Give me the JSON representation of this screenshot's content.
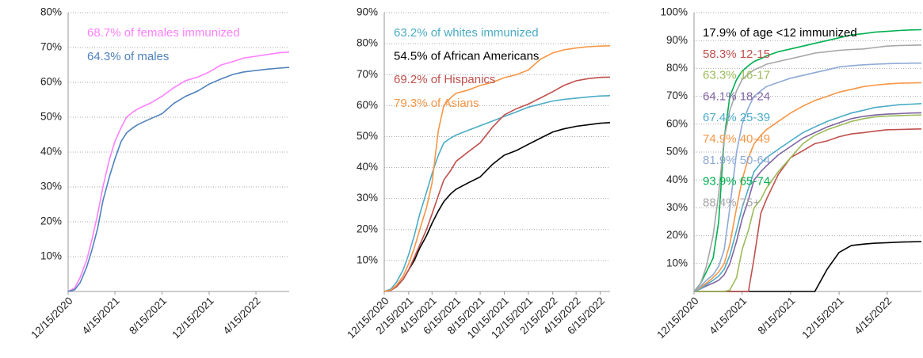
{
  "chart_data": [
    {
      "type": "line",
      "x": [
        "12/15/2020",
        "1/1/2021",
        "1/15/2021",
        "2/1/2021",
        "2/15/2021",
        "3/1/2021",
        "3/15/2021",
        "4/1/2021",
        "4/15/2021",
        "5/1/2021",
        "5/15/2021",
        "6/1/2021",
        "6/15/2021",
        "7/15/2021",
        "8/15/2021",
        "9/15/2021",
        "10/15/2021",
        "11/15/2021",
        "12/15/2021",
        "1/15/2022",
        "2/15/2022",
        "3/15/2022",
        "4/15/2022",
        "5/15/2022",
        "6/15/2022",
        "7/10/2022"
      ],
      "series": [
        {
          "name": "68.7% of females immunized",
          "color": "#ff80ff",
          "values": [
            0,
            1,
            4,
            9,
            15,
            22,
            30,
            38,
            43,
            47,
            50,
            51.5,
            52.5,
            54,
            56,
            58.5,
            60.5,
            61.5,
            63,
            65,
            66,
            67,
            67.5,
            68,
            68.5,
            68.7
          ]
        },
        {
          "name": "64.3% of males",
          "color": "#4f81bd",
          "values": [
            0,
            0.5,
            2.5,
            7,
            12,
            18,
            26,
            33,
            38,
            43,
            45.5,
            47,
            48,
            49.5,
            51,
            54,
            56,
            57.5,
            59.5,
            61,
            62.3,
            63,
            63.4,
            63.8,
            64.1,
            64.3
          ]
        }
      ],
      "xlim": [
        "12/15/2020",
        "7/10/2022"
      ],
      "xticks": [
        "12/15/2020",
        "4/15/2021",
        "8/15/2021",
        "12/15/2021",
        "4/15/2022"
      ],
      "ylim": [
        0,
        80
      ],
      "yticks": [
        {
          "value": 10,
          "label": "10%"
        },
        {
          "value": 20,
          "label": "20%"
        },
        {
          "value": 30,
          "label": "30%"
        },
        {
          "value": 40,
          "label": "40%"
        },
        {
          "value": 50,
          "label": "50%"
        },
        {
          "value": 60,
          "label": "60%"
        },
        {
          "value": 70,
          "label": "70%"
        },
        {
          "value": 80,
          "label": "80%"
        }
      ],
      "grid": true
    },
    {
      "type": "line",
      "x": [
        "12/15/2020",
        "1/1/2021",
        "1/15/2021",
        "2/1/2021",
        "2/15/2021",
        "3/1/2021",
        "3/15/2021",
        "4/1/2021",
        "4/15/2021",
        "5/1/2021",
        "5/15/2021",
        "6/1/2021",
        "6/15/2021",
        "7/15/2021",
        "8/15/2021",
        "9/15/2021",
        "10/15/2021",
        "11/15/2021",
        "12/15/2021",
        "1/15/2022",
        "2/15/2022",
        "3/15/2022",
        "4/15/2022",
        "5/15/2022",
        "6/15/2022",
        "7/10/2022"
      ],
      "series": [
        {
          "name": "63.2% of whites immunized",
          "color": "#4bacc6",
          "values": [
            0,
            0.8,
            3,
            7,
            12,
            18,
            25,
            32,
            38,
            44,
            48,
            49.5,
            50.5,
            52,
            53.5,
            55,
            56.5,
            58,
            59.5,
            60.5,
            61.5,
            62,
            62.4,
            62.8,
            63.1,
            63.2
          ]
        },
        {
          "name": "54.5% of African Americans",
          "color": "#000000",
          "values": [
            0,
            0.4,
            1.5,
            4,
            7,
            10,
            14,
            18,
            22,
            26,
            29,
            31.5,
            33,
            35,
            37,
            41,
            44,
            45.5,
            47.5,
            49.5,
            51.5,
            52.5,
            53.3,
            53.8,
            54.3,
            54.5
          ]
        },
        {
          "name": "69.2% of Hispanics",
          "color": "#c0504d",
          "values": [
            0,
            0.4,
            1.5,
            4,
            7,
            11,
            15,
            20,
            25,
            31,
            36,
            39,
            42,
            45,
            48,
            53,
            57,
            59,
            60.5,
            62.5,
            64.5,
            66.5,
            68,
            68.7,
            69.1,
            69.2
          ]
        },
        {
          "name": "79.3% of Asians",
          "color": "#f79646",
          "values": [
            0,
            0.5,
            2,
            5,
            9,
            14,
            20,
            27,
            35,
            52,
            60,
            62.5,
            64,
            65,
            66.5,
            67.5,
            69,
            70,
            71.5,
            75,
            77,
            78,
            78.6,
            79,
            79.2,
            79.3
          ]
        }
      ],
      "xlim": [
        "12/15/2020",
        "7/10/2022"
      ],
      "xticks": [
        "12/15/2020",
        "2/15/2021",
        "4/15/2021",
        "6/15/2021",
        "8/15/2021",
        "10/15/2021",
        "12/15/2021",
        "2/15/2022",
        "4/15/2022",
        "6/15/2022"
      ],
      "ylim": [
        0,
        90
      ],
      "yticks": [
        {
          "value": 10,
          "label": "10%"
        },
        {
          "value": 20,
          "label": "20%"
        },
        {
          "value": 30,
          "label": "30%"
        },
        {
          "value": 40,
          "label": "40%"
        },
        {
          "value": 50,
          "label": "50%"
        },
        {
          "value": 60,
          "label": "60%"
        },
        {
          "value": 70,
          "label": "70%"
        },
        {
          "value": 80,
          "label": "80%"
        },
        {
          "value": 90,
          "label": "90%"
        }
      ],
      "grid": true
    },
    {
      "type": "line",
      "x": [
        "12/15/2020",
        "1/1/2021",
        "1/15/2021",
        "2/1/2021",
        "2/15/2021",
        "3/1/2021",
        "3/15/2021",
        "4/1/2021",
        "4/15/2021",
        "5/1/2021",
        "5/15/2021",
        "6/1/2021",
        "6/15/2021",
        "7/15/2021",
        "8/15/2021",
        "9/15/2021",
        "10/15/2021",
        "11/15/2021",
        "12/15/2021",
        "1/15/2022",
        "2/15/2022",
        "3/15/2022",
        "4/15/2022",
        "5/15/2022",
        "6/15/2022",
        "7/10/2022"
      ],
      "series": [
        {
          "name": "17.9% of age <12 immunized",
          "color": "#000000",
          "values": [
            0,
            0,
            0,
            0,
            0,
            0,
            0,
            0,
            0,
            0,
            0,
            0,
            0,
            0,
            0,
            0,
            0,
            8,
            14,
            16.5,
            17,
            17.3,
            17.5,
            17.7,
            17.8,
            17.9
          ]
        },
        {
          "name": "58.3% 12-15",
          "color": "#c0504d",
          "values": [
            0,
            0,
            0,
            0,
            0,
            0,
            0,
            0,
            0,
            0,
            12,
            28,
            33,
            42,
            48,
            50.5,
            53,
            54,
            55.5,
            56.5,
            57,
            57.5,
            58,
            58.1,
            58.2,
            58.3
          ]
        },
        {
          "name": "63.3% 16-17",
          "color": "#9bbb59",
          "values": [
            0,
            0,
            0,
            0,
            0,
            0,
            0.5,
            5,
            15,
            22,
            30,
            33,
            37,
            43,
            48,
            53,
            56,
            58,
            59.5,
            61,
            62,
            62.6,
            62.9,
            63.1,
            63.2,
            63.3
          ]
        },
        {
          "name": "64.1% 18-24",
          "color": "#8064a2",
          "values": [
            0,
            1,
            2,
            3,
            4,
            6,
            10,
            18,
            26,
            33,
            40,
            43,
            45,
            49,
            52,
            55,
            57,
            59,
            60.5,
            62,
            62.8,
            63.3,
            63.6,
            63.8,
            64,
            64.1
          ]
        },
        {
          "name": "67.4% 25-39",
          "color": "#4bacc6",
          "values": [
            0,
            1,
            2.5,
            4,
            5.5,
            8,
            13,
            22,
            30,
            37,
            43,
            46,
            48,
            51,
            54,
            57,
            59,
            61,
            62.5,
            64,
            65,
            66,
            66.5,
            67,
            67.2,
            67.4
          ]
        },
        {
          "name": "74.9% 40-49",
          "color": "#f79646",
          "values": [
            0,
            1.5,
            3,
            5,
            7,
            10,
            17,
            30,
            40,
            48,
            53,
            56,
            58,
            61,
            64,
            66.5,
            68.5,
            70,
            71.5,
            72.5,
            73.5,
            74,
            74.4,
            74.7,
            74.8,
            74.9
          ]
        },
        {
          "name": "81.9% 50-64",
          "color": "#8eaad6",
          "values": [
            0,
            2,
            4,
            6,
            9,
            15,
            30,
            50,
            60,
            66,
            70,
            72,
            73.5,
            75,
            76.5,
            77.5,
            78.5,
            79.5,
            80.5,
            81,
            81.3,
            81.5,
            81.7,
            81.8,
            81.9,
            81.9
          ]
        },
        {
          "name": "93.9% 65-74",
          "color": "#00b050",
          "values": [
            0,
            3,
            7,
            12,
            25,
            55,
            70,
            76,
            79,
            81,
            82.5,
            83.5,
            84.5,
            86,
            87,
            88,
            89,
            90,
            91,
            92,
            92.5,
            93,
            93.3,
            93.6,
            93.8,
            93.9
          ]
        },
        {
          "name": "88.4% 75+",
          "color": "#a6a6a6",
          "values": [
            0,
            3,
            9,
            20,
            35,
            55,
            65,
            72,
            76,
            78,
            79.5,
            80.5,
            81.5,
            82.5,
            83.5,
            84.5,
            85.5,
            86,
            86.5,
            86.8,
            87,
            87.5,
            88,
            88.2,
            88.3,
            88.4
          ]
        }
      ],
      "xlim": [
        "12/15/2020",
        "7/10/2022"
      ],
      "xticks": [
        "12/15/2020",
        "4/15/2021",
        "8/15/2021",
        "12/15/2021",
        "4/15/2022"
      ],
      "ylim": [
        0,
        100
      ],
      "yticks": [
        {
          "value": 10,
          "label": "10%"
        },
        {
          "value": 20,
          "label": "20%"
        },
        {
          "value": 30,
          "label": "30%"
        },
        {
          "value": 40,
          "label": "40%"
        },
        {
          "value": 50,
          "label": "50%"
        },
        {
          "value": 60,
          "label": "60%"
        },
        {
          "value": 70,
          "label": "70%"
        },
        {
          "value": 80,
          "label": "80%"
        },
        {
          "value": 90,
          "label": "90%"
        },
        {
          "value": 100,
          "label": "100%"
        }
      ],
      "grid": true
    }
  ]
}
